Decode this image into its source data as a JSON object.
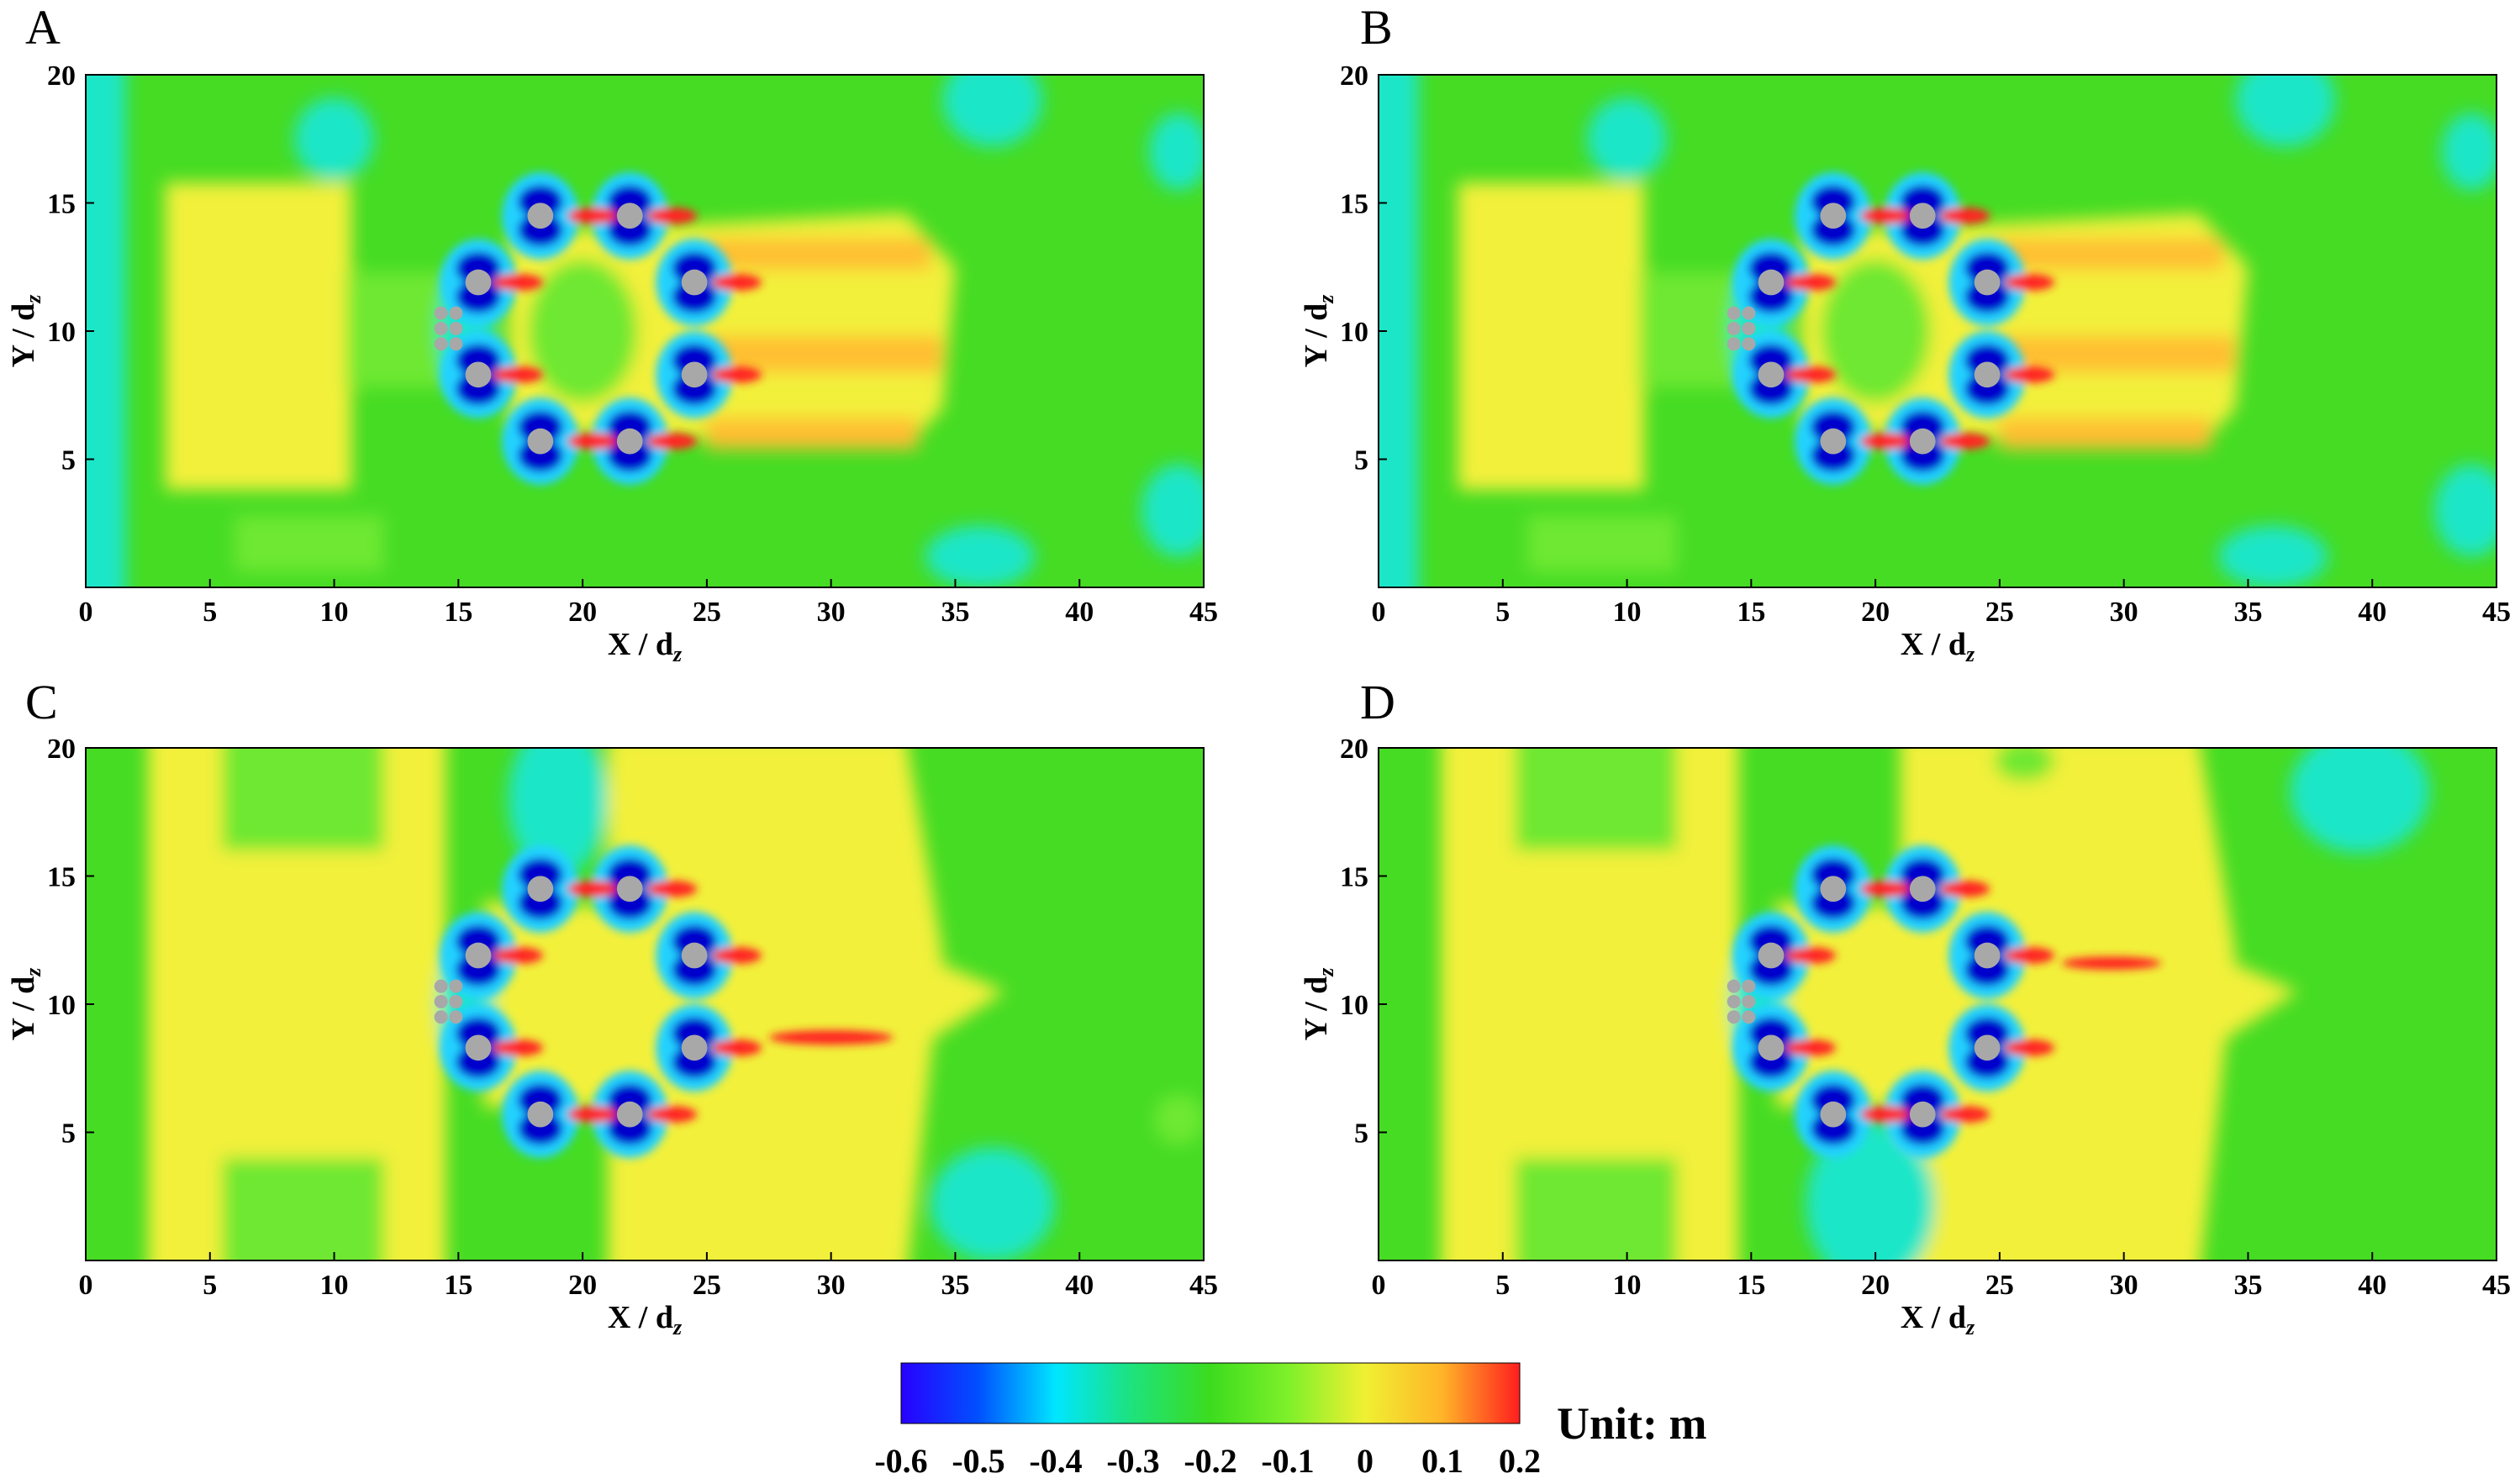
{
  "chart_data": {
    "type": "heatmap",
    "colorbar": {
      "ticks": [
        "-0.6",
        "-0.5",
        "-0.4",
        "-0.3",
        "-0.2",
        "-0.1",
        "0",
        "0.1",
        "0.2"
      ],
      "range": [
        -0.6,
        0.2
      ],
      "unit_label": "Unit: m",
      "colors": [
        "#2800ff",
        "#0050ff",
        "#00e6ff",
        "#1ee27a",
        "#3cdc1e",
        "#7ef02a",
        "#f0f032",
        "#ffb428",
        "#ff1e1e"
      ]
    },
    "panels": [
      {
        "label": "A"
      },
      {
        "label": "B"
      },
      {
        "label": "C"
      },
      {
        "label": "D"
      }
    ],
    "x_axis": {
      "label_main": "X / d",
      "label_sub": "z",
      "ticks": [
        0,
        5,
        10,
        15,
        20,
        25,
        30,
        35,
        40,
        45
      ],
      "range": [
        0,
        45
      ]
    },
    "y_axis": {
      "label_main": "Y / d",
      "label_sub": "z",
      "ticks": [
        5,
        10,
        15,
        20
      ],
      "range": [
        0,
        20
      ]
    },
    "piers": [
      {
        "x": 15.8,
        "y": 11.9
      },
      {
        "x": 15.8,
        "y": 8.3
      },
      {
        "x": 18.3,
        "y": 14.5
      },
      {
        "x": 18.3,
        "y": 5.7
      },
      {
        "x": 21.9,
        "y": 14.5
      },
      {
        "x": 21.9,
        "y": 5.7
      },
      {
        "x": 24.5,
        "y": 11.9
      },
      {
        "x": 24.5,
        "y": 8.3
      }
    ],
    "small_piers": [
      {
        "x": 14.3,
        "y": 10.7
      },
      {
        "x": 14.3,
        "y": 10.1
      },
      {
        "x": 14.3,
        "y": 9.5
      },
      {
        "x": 14.9,
        "y": 10.7
      },
      {
        "x": 14.9,
        "y": 10.1
      },
      {
        "x": 14.9,
        "y": 9.5
      }
    ]
  }
}
